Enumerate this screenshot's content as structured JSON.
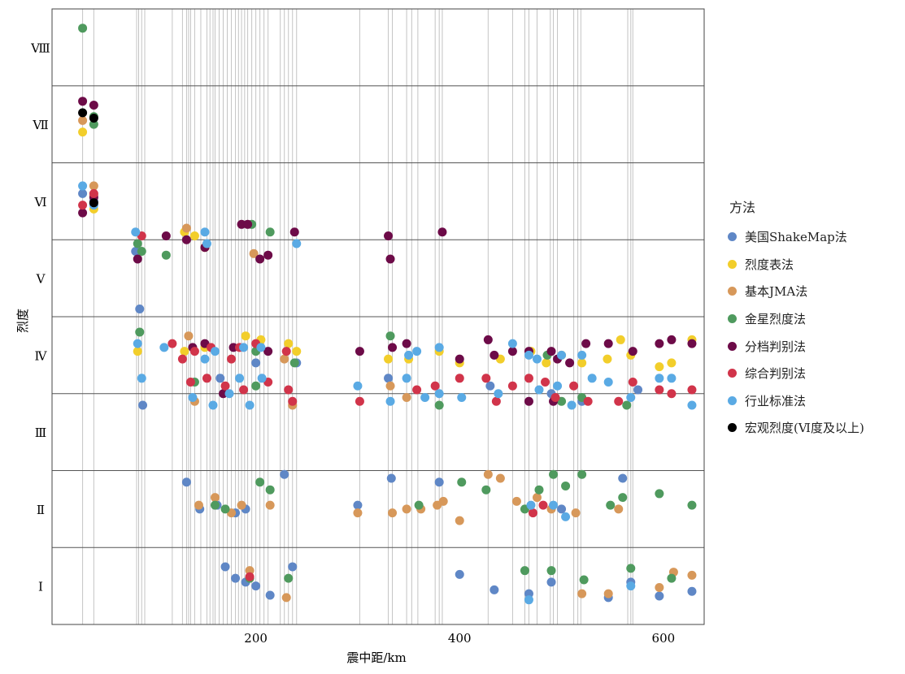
{
  "chart_data": {
    "type": "scatter",
    "xlabel": "震中距/km",
    "ylabel": "烈度",
    "xlim": [
      0,
      640
    ],
    "x_ticks": [
      200,
      400,
      600
    ],
    "grid": true,
    "categories": [
      "Ⅰ",
      "Ⅱ",
      "Ⅲ",
      "Ⅳ",
      "Ⅴ",
      "Ⅵ",
      "Ⅶ",
      "Ⅷ"
    ],
    "station_distances": [
      30,
      41,
      83,
      85,
      88,
      91,
      118,
      128,
      132,
      134,
      136,
      140,
      146,
      152,
      155,
      158,
      160,
      164,
      168,
      172,
      176,
      180,
      183,
      186,
      189,
      192,
      196,
      200,
      204,
      208,
      212,
      224,
      228,
      232,
      236,
      240,
      302,
      330,
      334,
      348,
      353,
      359,
      376,
      380,
      383,
      428,
      452,
      464,
      468,
      476,
      489,
      492,
      496,
      512,
      516,
      519,
      565,
      568,
      570
    ],
    "legend_title": "方法",
    "series": [
      {
        "name": "美国ShakeMap法",
        "color": "#5f87c6",
        "points": [
          [
            30,
            5.6
          ],
          [
            41,
            5.5
          ],
          [
            82,
            4.85
          ],
          [
            86,
            4.1
          ],
          [
            89,
            2.85
          ],
          [
            200,
            3.4
          ],
          [
            165,
            3.2
          ],
          [
            240,
            3.4
          ],
          [
            330,
            3.2
          ],
          [
            430,
            3.1
          ],
          [
            490,
            3.0
          ],
          [
            520,
            2.9
          ],
          [
            575,
            3.05
          ],
          [
            132,
            1.85
          ],
          [
            145,
            1.5
          ],
          [
            162,
            1.55
          ],
          [
            180,
            1.45
          ],
          [
            190,
            1.5
          ],
          [
            228,
            1.95
          ],
          [
            300,
            1.55
          ],
          [
            333,
            1.9
          ],
          [
            380,
            1.85
          ],
          [
            500,
            1.5
          ],
          [
            560,
            1.9
          ],
          [
            170,
            0.75
          ],
          [
            180,
            0.6
          ],
          [
            190,
            0.55
          ],
          [
            200,
            0.5
          ],
          [
            214,
            0.38
          ],
          [
            236,
            0.75
          ],
          [
            400,
            0.65
          ],
          [
            434,
            0.45
          ],
          [
            468,
            0.4
          ],
          [
            490,
            0.55
          ],
          [
            546,
            0.35
          ],
          [
            568,
            0.55
          ],
          [
            596,
            0.37
          ],
          [
            628,
            0.43
          ]
        ]
      },
      {
        "name": "烈度表法",
        "color": "#f2ce2b",
        "points": [
          [
            30,
            6.4
          ],
          [
            41,
            5.4
          ],
          [
            130,
            5.1
          ],
          [
            140,
            5.05
          ],
          [
            150,
            4.9
          ],
          [
            84,
            3.55
          ],
          [
            130,
            3.55
          ],
          [
            150,
            3.6
          ],
          [
            190,
            3.75
          ],
          [
            205,
            3.7
          ],
          [
            232,
            3.65
          ],
          [
            240,
            3.55
          ],
          [
            330,
            3.45
          ],
          [
            350,
            3.45
          ],
          [
            380,
            3.55
          ],
          [
            400,
            3.4
          ],
          [
            440,
            3.45
          ],
          [
            470,
            3.55
          ],
          [
            485,
            3.4
          ],
          [
            500,
            3.5
          ],
          [
            520,
            3.4
          ],
          [
            545,
            3.45
          ],
          [
            558,
            3.7
          ],
          [
            568,
            3.5
          ],
          [
            596,
            3.35
          ],
          [
            608,
            3.4
          ],
          [
            628,
            3.7
          ]
        ]
      },
      {
        "name": "基本JMA法",
        "color": "#d7985a",
        "points": [
          [
            30,
            6.55
          ],
          [
            41,
            5.7
          ],
          [
            41,
            5.58
          ],
          [
            132,
            5.15
          ],
          [
            198,
            4.82
          ],
          [
            134,
            3.75
          ],
          [
            228,
            3.45
          ],
          [
            140,
            2.9
          ],
          [
            236,
            2.85
          ],
          [
            332,
            3.1
          ],
          [
            348,
            2.95
          ],
          [
            144,
            1.55
          ],
          [
            160,
            1.65
          ],
          [
            176,
            1.45
          ],
          [
            186,
            1.55
          ],
          [
            214,
            1.55
          ],
          [
            300,
            1.45
          ],
          [
            334,
            1.45
          ],
          [
            348,
            1.5
          ],
          [
            362,
            1.5
          ],
          [
            378,
            1.55
          ],
          [
            384,
            1.6
          ],
          [
            400,
            1.35
          ],
          [
            428,
            1.95
          ],
          [
            440,
            1.9
          ],
          [
            456,
            1.6
          ],
          [
            476,
            1.65
          ],
          [
            490,
            1.5
          ],
          [
            514,
            1.45
          ],
          [
            556,
            1.5
          ],
          [
            194,
            0.7
          ],
          [
            230,
            0.35
          ],
          [
            520,
            0.4
          ],
          [
            546,
            0.4
          ],
          [
            596,
            0.48
          ],
          [
            610,
            0.68
          ],
          [
            628,
            0.64
          ]
        ]
      },
      {
        "name": "金星烈度法",
        "color": "#4f9a5e",
        "points": [
          [
            30,
            7.75
          ],
          [
            41,
            6.6
          ],
          [
            41,
            6.5
          ],
          [
            84,
            4.95
          ],
          [
            88,
            4.85
          ],
          [
            112,
            4.8
          ],
          [
            196,
            5.2
          ],
          [
            214,
            5.1
          ],
          [
            86,
            3.8
          ],
          [
            200,
            3.55
          ],
          [
            238,
            3.4
          ],
          [
            332,
            3.75
          ],
          [
            486,
            3.5
          ],
          [
            140,
            3.15
          ],
          [
            200,
            3.1
          ],
          [
            380,
            2.85
          ],
          [
            500,
            2.9
          ],
          [
            520,
            2.95
          ],
          [
            564,
            2.85
          ],
          [
            160,
            1.55
          ],
          [
            170,
            1.5
          ],
          [
            204,
            1.85
          ],
          [
            214,
            1.75
          ],
          [
            360,
            1.55
          ],
          [
            402,
            1.85
          ],
          [
            426,
            1.75
          ],
          [
            464,
            1.5
          ],
          [
            478,
            1.75
          ],
          [
            492,
            1.95
          ],
          [
            504,
            1.8
          ],
          [
            520,
            1.95
          ],
          [
            548,
            1.55
          ],
          [
            560,
            1.65
          ],
          [
            596,
            1.7
          ],
          [
            628,
            1.55
          ],
          [
            194,
            0.6
          ],
          [
            232,
            0.6
          ],
          [
            464,
            0.7
          ],
          [
            490,
            0.7
          ],
          [
            522,
            0.58
          ],
          [
            568,
            0.73
          ],
          [
            608,
            0.6
          ]
        ]
      },
      {
        "name": "分档判别法",
        "color": "#6d0b48",
        "points": [
          [
            30,
            6.8
          ],
          [
            41,
            6.75
          ],
          [
            30,
            5.35
          ],
          [
            41,
            5.55
          ],
          [
            84,
            4.75
          ],
          [
            112,
            5.05
          ],
          [
            132,
            5.0
          ],
          [
            150,
            4.9
          ],
          [
            186,
            5.2
          ],
          [
            192,
            5.2
          ],
          [
            204,
            4.75
          ],
          [
            212,
            4.8
          ],
          [
            238,
            5.1
          ],
          [
            330,
            5.05
          ],
          [
            332,
            4.75
          ],
          [
            383,
            5.1
          ],
          [
            138,
            3.6
          ],
          [
            150,
            3.65
          ],
          [
            178,
            3.6
          ],
          [
            212,
            3.55
          ],
          [
            302,
            3.55
          ],
          [
            334,
            3.6
          ],
          [
            348,
            3.65
          ],
          [
            400,
            3.45
          ],
          [
            428,
            3.7
          ],
          [
            434,
            3.5
          ],
          [
            452,
            3.55
          ],
          [
            468,
            3.55
          ],
          [
            490,
            3.55
          ],
          [
            496,
            3.45
          ],
          [
            508,
            3.4
          ],
          [
            524,
            3.65
          ],
          [
            546,
            3.65
          ],
          [
            570,
            3.55
          ],
          [
            596,
            3.65
          ],
          [
            608,
            3.7
          ],
          [
            628,
            3.65
          ],
          [
            168,
            3.0
          ],
          [
            468,
            2.9
          ],
          [
            492,
            2.9
          ]
        ]
      },
      {
        "name": "综合判别法",
        "color": "#d1344a",
        "points": [
          [
            30,
            5.45
          ],
          [
            41,
            5.6
          ],
          [
            88,
            5.05
          ],
          [
            118,
            3.65
          ],
          [
            128,
            3.45
          ],
          [
            140,
            3.55
          ],
          [
            156,
            3.6
          ],
          [
            176,
            3.45
          ],
          [
            184,
            3.6
          ],
          [
            200,
            3.65
          ],
          [
            230,
            3.55
          ],
          [
            136,
            3.15
          ],
          [
            152,
            3.2
          ],
          [
            170,
            3.1
          ],
          [
            188,
            3.05
          ],
          [
            212,
            3.15
          ],
          [
            232,
            3.05
          ],
          [
            236,
            2.9
          ],
          [
            302,
            2.9
          ],
          [
            358,
            3.05
          ],
          [
            376,
            3.1
          ],
          [
            400,
            3.2
          ],
          [
            426,
            3.2
          ],
          [
            436,
            2.9
          ],
          [
            452,
            3.1
          ],
          [
            468,
            3.2
          ],
          [
            484,
            3.15
          ],
          [
            494,
            2.95
          ],
          [
            512,
            3.1
          ],
          [
            526,
            2.9
          ],
          [
            556,
            2.9
          ],
          [
            570,
            3.15
          ],
          [
            596,
            3.05
          ],
          [
            608,
            3.0
          ],
          [
            628,
            3.05
          ],
          [
            472,
            1.45
          ],
          [
            482,
            1.55
          ],
          [
            194,
            0.62
          ]
        ]
      },
      {
        "name": "行业标准法",
        "color": "#5aaae4",
        "points": [
          [
            30,
            5.7
          ],
          [
            41,
            5.45
          ],
          [
            82,
            5.1
          ],
          [
            150,
            5.1
          ],
          [
            152,
            4.95
          ],
          [
            240,
            4.95
          ],
          [
            84,
            3.65
          ],
          [
            110,
            3.6
          ],
          [
            150,
            3.45
          ],
          [
            160,
            3.55
          ],
          [
            188,
            3.6
          ],
          [
            205,
            3.6
          ],
          [
            350,
            3.5
          ],
          [
            358,
            3.55
          ],
          [
            380,
            3.6
          ],
          [
            452,
            3.65
          ],
          [
            468,
            3.5
          ],
          [
            476,
            3.45
          ],
          [
            500,
            3.5
          ],
          [
            520,
            3.5
          ],
          [
            88,
            3.2
          ],
          [
            138,
            2.95
          ],
          [
            158,
            2.85
          ],
          [
            174,
            3.0
          ],
          [
            184,
            3.2
          ],
          [
            194,
            2.85
          ],
          [
            206,
            3.2
          ],
          [
            300,
            3.1
          ],
          [
            332,
            2.9
          ],
          [
            348,
            3.2
          ],
          [
            366,
            2.95
          ],
          [
            380,
            3.0
          ],
          [
            402,
            2.95
          ],
          [
            438,
            3.0
          ],
          [
            478,
            3.05
          ],
          [
            496,
            3.1
          ],
          [
            510,
            2.85
          ],
          [
            530,
            3.2
          ],
          [
            546,
            3.15
          ],
          [
            568,
            2.95
          ],
          [
            596,
            3.2
          ],
          [
            608,
            3.2
          ],
          [
            628,
            2.85
          ],
          [
            470,
            1.55
          ],
          [
            492,
            1.55
          ],
          [
            504,
            1.4
          ],
          [
            468,
            0.32
          ],
          [
            568,
            0.5
          ]
        ]
      },
      {
        "name": "宏观烈度(Ⅵ度及以上)",
        "color": "#000000",
        "points": [
          [
            30,
            6.65
          ],
          [
            41,
            6.58
          ],
          [
            41,
            5.48
          ]
        ]
      }
    ]
  }
}
